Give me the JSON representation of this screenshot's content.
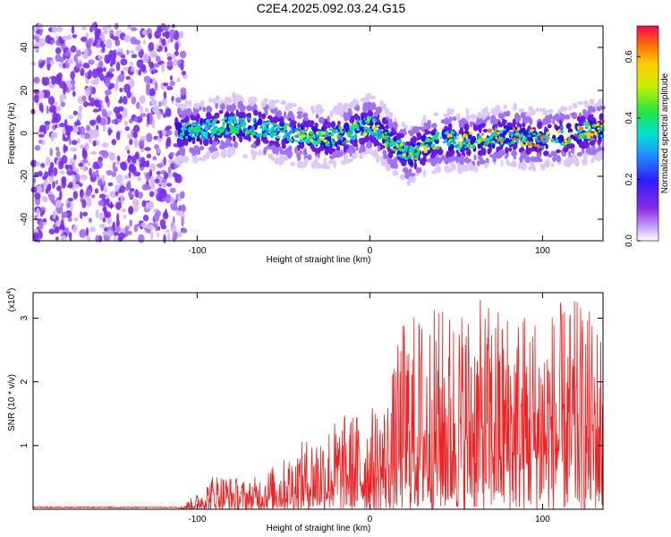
{
  "title": "C2E4.2025.092.03.24.G15",
  "chart_data": [
    {
      "type": "heatmap",
      "xlabel": "Height of straight line (km)",
      "ylabel": "Frequency (Hz)",
      "xlim": [
        -195,
        135
      ],
      "ylim": [
        -50,
        50
      ],
      "x_ticks": [
        -100,
        0,
        100
      ],
      "y_ticks": [
        -40,
        -20,
        0,
        20,
        40
      ],
      "colorbar": {
        "label": "Normalized spectral amplitude",
        "range": [
          0,
          0.7
        ],
        "ticks": [
          "0.0",
          "0.2",
          "0.4",
          "0.6"
        ]
      },
      "ridge_center_freq_hz": [
        {
          "x": -115,
          "y": 0
        },
        {
          "x": -100,
          "y": 1
        },
        {
          "x": -80,
          "y": 4
        },
        {
          "x": -60,
          "y": 2
        },
        {
          "x": -40,
          "y": -1
        },
        {
          "x": -20,
          "y": -2
        },
        {
          "x": 0,
          "y": 4
        },
        {
          "x": 10,
          "y": -2
        },
        {
          "x": 22,
          "y": -10
        },
        {
          "x": 40,
          "y": -3
        },
        {
          "x": 60,
          "y": -4
        },
        {
          "x": 80,
          "y": -1
        },
        {
          "x": 100,
          "y": -3
        },
        {
          "x": 120,
          "y": 0
        },
        {
          "x": 135,
          "y": 2
        }
      ],
      "noise_region_x": [
        -195,
        -112
      ]
    },
    {
      "type": "line",
      "xlabel": "Height of straight line (km)",
      "ylabel": "SNR (10 * v/v)",
      "multiplier_label": "(x10",
      "multiplier_exp": "4",
      "xlim": [
        -195,
        135
      ],
      "ylim": [
        0,
        3.4
      ],
      "x_ticks": [
        -100,
        0,
        100
      ],
      "y_ticks": [
        1,
        2,
        3
      ],
      "color": "#ee2222",
      "series": [
        {
          "envelope": [
            {
              "x": -195,
              "y": 0.03
            },
            {
              "x": -110,
              "y": 0.04
            },
            {
              "x": -100,
              "y": 0.25
            },
            {
              "x": -90,
              "y": 0.6
            },
            {
              "x": -70,
              "y": 0.45
            },
            {
              "x": -50,
              "y": 0.8
            },
            {
              "x": -30,
              "y": 1.3
            },
            {
              "x": -15,
              "y": 1.5
            },
            {
              "x": 0,
              "y": 1.6
            },
            {
              "x": 10,
              "y": 1.8
            },
            {
              "x": 20,
              "y": 3.1
            },
            {
              "x": 40,
              "y": 3.2
            },
            {
              "x": 60,
              "y": 3.3
            },
            {
              "x": 80,
              "y": 3.25
            },
            {
              "x": 100,
              "y": 3.2
            },
            {
              "x": 120,
              "y": 3.3
            },
            {
              "x": 135,
              "y": 3.0
            }
          ]
        }
      ]
    }
  ]
}
